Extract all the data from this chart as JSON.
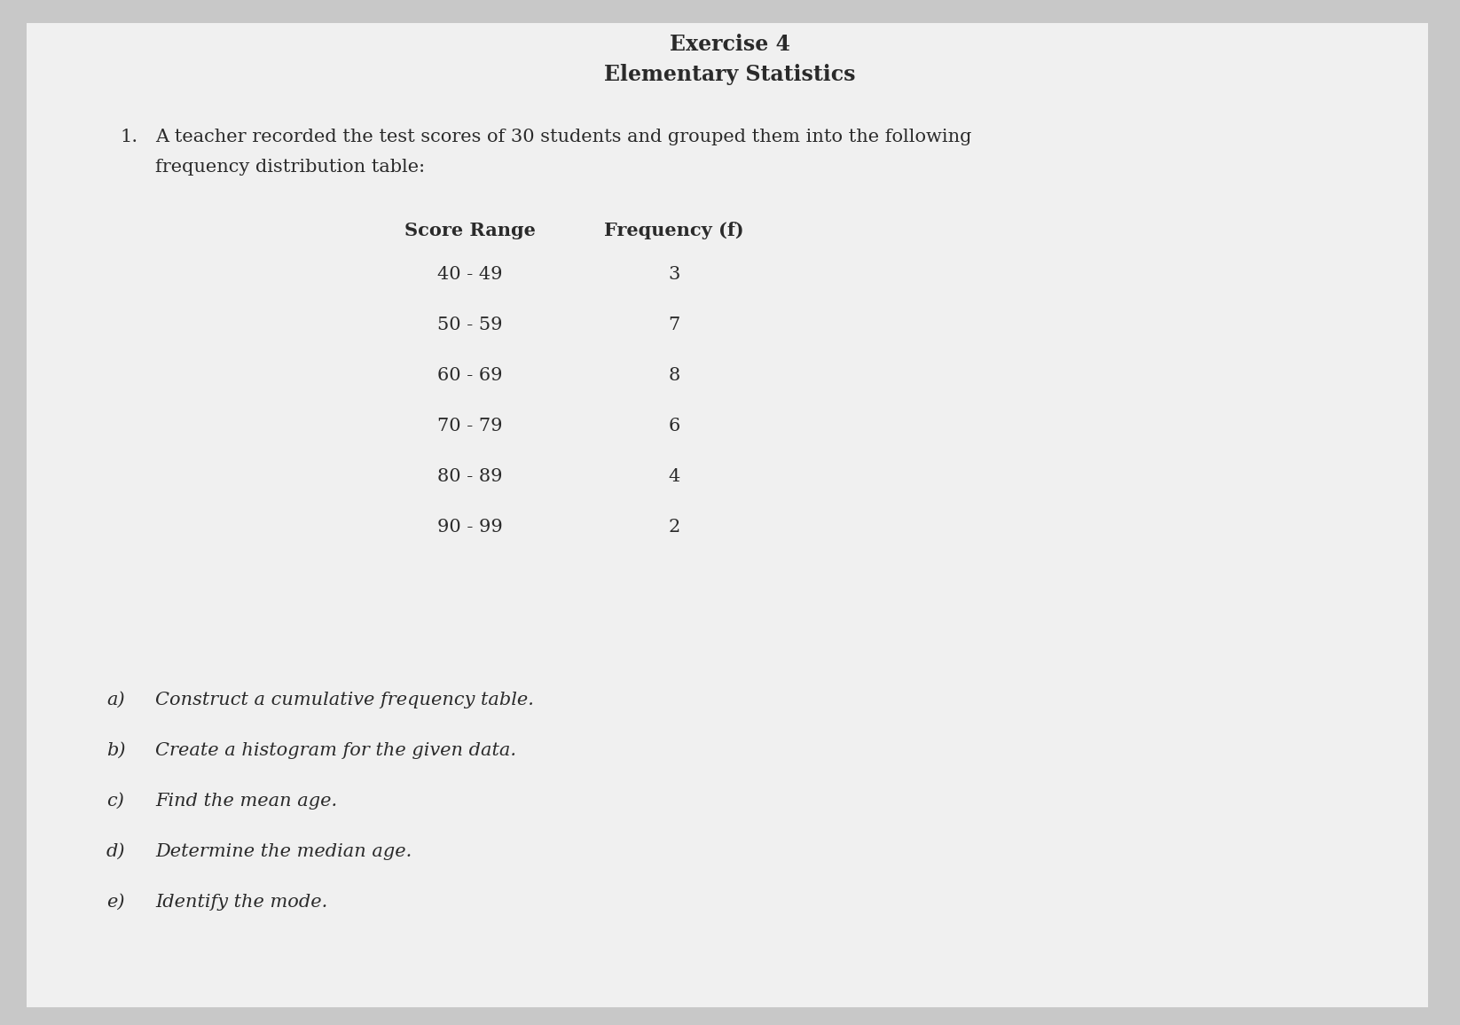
{
  "title1": "Exercise 4",
  "title2": "Elementary Statistics",
  "question_number": "1.",
  "question_text": "A teacher recorded the test scores of 30 students and grouped them into the following",
  "question_text2": "frequency distribution table:",
  "col1_header": "Score Range",
  "col2_header": "Frequency (f)",
  "rows": [
    [
      "40 - 49",
      "3"
    ],
    [
      "50 - 59",
      "7"
    ],
    [
      "60 - 69",
      "8"
    ],
    [
      "70 - 79",
      "6"
    ],
    [
      "80 - 89",
      "4"
    ],
    [
      "90 - 99",
      "2"
    ]
  ],
  "sub_items": [
    [
      "a)",
      "Construct a cumulative frequency table."
    ],
    [
      "b)",
      "Create a histogram for the given data."
    ],
    [
      "c)",
      "Find the mean age."
    ],
    [
      "d)",
      "Determine the median age."
    ],
    [
      "e)",
      "Identify the mode."
    ]
  ],
  "bg_color": "#c8c8c8",
  "paper_color": "#f0f0f0",
  "text_color": "#2a2a2a",
  "font_size_title": 17,
  "font_size_body": 15,
  "font_size_table": 15,
  "font_size_sub": 15
}
